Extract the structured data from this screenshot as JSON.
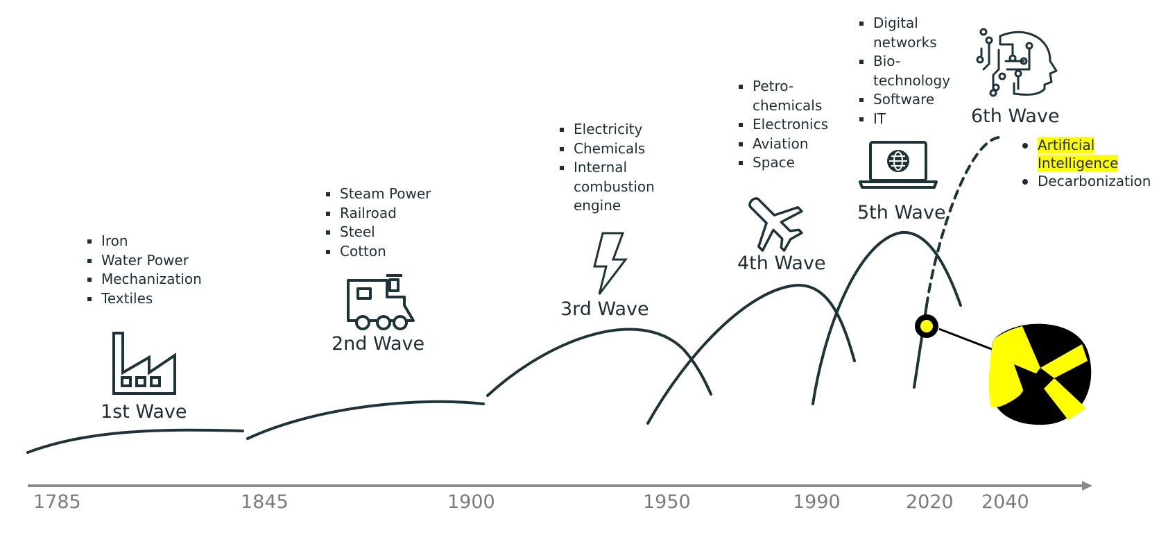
{
  "timeline": {
    "years": [
      "1785",
      "1845",
      "1900",
      "1950",
      "1990",
      "2020",
      "2040"
    ]
  },
  "waves": [
    {
      "label": "1st Wave",
      "icon": "factory-icon",
      "items": [
        "Iron",
        "Water Power",
        "Mechanization",
        "Textiles"
      ]
    },
    {
      "label": "2nd Wave",
      "icon": "train-icon",
      "items": [
        "Steam Power",
        "Railroad",
        "Steel",
        "Cotton"
      ]
    },
    {
      "label": "3rd Wave",
      "icon": "lightning-icon",
      "items": [
        "Electricity",
        "Chemicals",
        "Internal combustion engine"
      ]
    },
    {
      "label": "4th Wave",
      "icon": "airplane-icon",
      "items": [
        "Petro-chemicals",
        "Electronics",
        "Aviation",
        "Space"
      ]
    },
    {
      "label": "5th Wave",
      "icon": "laptop-globe-icon",
      "items": [
        "Digital networks",
        "Bio-technology",
        "Software",
        "IT"
      ]
    },
    {
      "label": "6th Wave",
      "icon": "ai-head-icon",
      "items": [
        "Artificial Intelligence",
        "Decarbonization"
      ]
    }
  ],
  "colors": {
    "curve": "#1d3338",
    "axis": "#8a8a8a",
    "year_text": "#7a7a7a",
    "highlight": "#ffff00",
    "marker": "#ffff00",
    "logo_bg": "#000000"
  },
  "logo": {
    "icon": "brand-logo-icon"
  }
}
